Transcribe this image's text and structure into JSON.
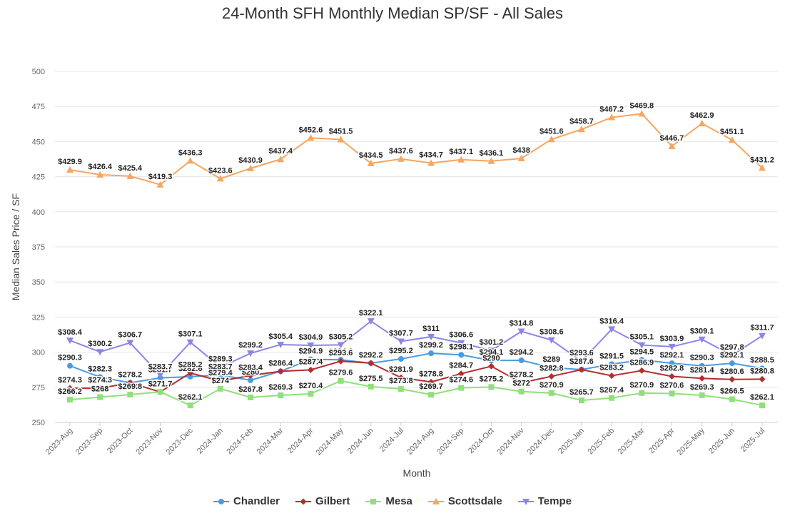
{
  "chart_data": {
    "type": "line",
    "title": "24-Month SFH Monthly Median SP/SF - All Sales",
    "xlabel": "Month",
    "ylabel": "Median Sales Price / SF",
    "ylim": [
      250,
      500
    ],
    "yticks": [
      250,
      275,
      300,
      325,
      350,
      375,
      400,
      425,
      450,
      475,
      500
    ],
    "grid": true,
    "legend_position": "bottom",
    "label_prefix": "$",
    "categories": [
      "2023-Aug",
      "2023-Sep",
      "2023-Oct",
      "2023-Nov",
      "2023-Dec",
      "2024-Jan",
      "2024-Feb",
      "2024-Mar",
      "2024-Apr",
      "2024-May",
      "2024-Jun",
      "2024-Jul",
      "2024-Aug",
      "2024-Sep",
      "2024-Oct",
      "2024-Nov",
      "2024-Dec",
      "2025-Jan",
      "2025-Feb",
      "2025-Mar",
      "2025-Apr",
      "2025-May",
      "2025-Jun",
      "2025-Jul"
    ],
    "series": [
      {
        "name": "Chandler",
        "color": "#4a9be0",
        "marker": "circle",
        "values": [
          290.3,
          282.3,
          278.2,
          281.7,
          282.6,
          283.7,
          280,
          286.4,
          294.9,
          294.6,
          292.2,
          295.2,
          299.2,
          298.1,
          294.1,
          294.2,
          289,
          287.6,
          291.5,
          294.5,
          292.1,
          290.3,
          292.1,
          288.5
        ]
      },
      {
        "name": "Gilbert",
        "color": "#b52e2e",
        "marker": "diamond",
        "values": [
          274.3,
          274.3,
          278.2,
          271.7,
          285.2,
          279.4,
          283.4,
          286.4,
          287.4,
          293.6,
          292.2,
          281.9,
          278.8,
          284.7,
          290,
          278.2,
          282.8,
          287.6,
          283.2,
          286.9,
          282.8,
          281.4,
          280.6,
          280.8
        ]
      },
      {
        "name": "Mesa",
        "color": "#8fe07a",
        "marker": "square",
        "values": [
          266.2,
          268,
          269.8,
          271.7,
          262.1,
          274,
          267.8,
          269.3,
          270.4,
          279.6,
          275.5,
          273.8,
          269.7,
          274.6,
          275.2,
          272,
          270.9,
          265.7,
          267.4,
          270.9,
          270.6,
          269.3,
          266.5,
          262.1
        ]
      },
      {
        "name": "Scottsdale",
        "color": "#f5a660",
        "marker": "triangle",
        "values": [
          429.9,
          426.4,
          425.4,
          419.3,
          436.3,
          423.6,
          430.9,
          437.4,
          452.6,
          451.5,
          434.5,
          437.6,
          434.7,
          437.1,
          436.1,
          438,
          451.6,
          458.7,
          467.2,
          469.8,
          446.7,
          462.9,
          451.1,
          431.2
        ]
      },
      {
        "name": "Tempe",
        "color": "#8a86e8",
        "marker": "triangle-down",
        "values": [
          308.4,
          300.2,
          306.7,
          283.7,
          307.1,
          289.3,
          299.2,
          305.4,
          304.9,
          305.2,
          322.1,
          307.7,
          311,
          306.6,
          301.2,
          314.8,
          308.6,
          293.6,
          316.4,
          305.1,
          303.9,
          309.1,
          297.8,
          311.7
        ]
      }
    ]
  }
}
